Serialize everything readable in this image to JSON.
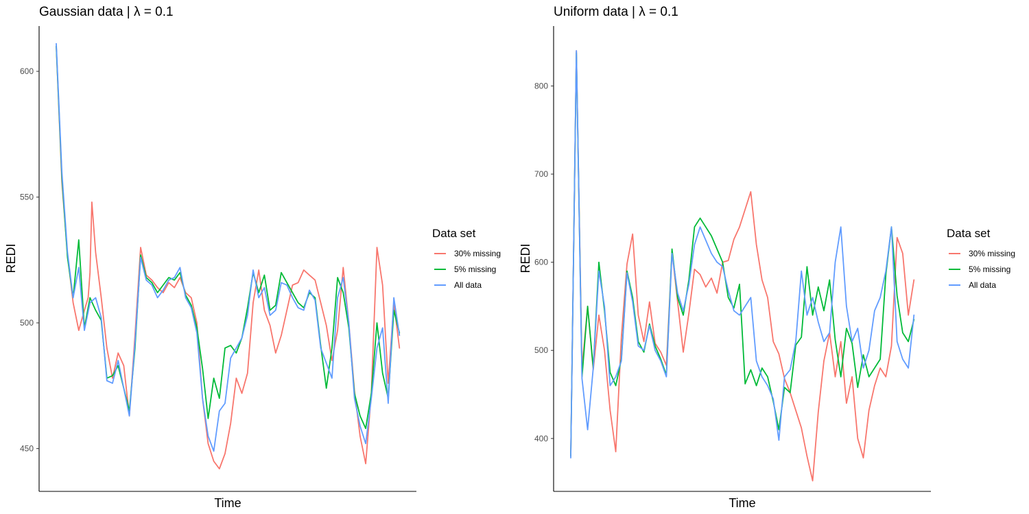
{
  "chart_data": [
    {
      "type": "line",
      "title": "Gaussian data | λ = 0.1",
      "xlabel": "Time",
      "ylabel": "REDI",
      "ylim": [
        433,
        618
      ],
      "yticks": [
        450,
        500,
        550,
        600
      ],
      "xlim": [
        0,
        184
      ],
      "grid": false,
      "legend": {
        "title": "Data set",
        "placement": "right",
        "entries": [
          "30% missing",
          "5% missing",
          "All data"
        ]
      },
      "series": [
        {
          "name": "30% missing",
          "color": "#F8766D",
          "x": [
            0,
            3,
            6,
            9,
            12,
            15,
            17,
            18,
            19,
            21,
            24,
            27,
            30,
            33,
            36,
            39,
            42,
            45,
            48,
            51,
            54,
            57,
            60,
            63,
            66,
            69,
            72,
            75,
            78,
            81,
            84,
            87,
            90,
            93,
            96,
            99,
            102,
            105,
            108,
            111,
            114,
            117,
            120,
            123,
            126,
            129,
            132,
            135,
            138,
            141,
            144,
            147,
            150,
            153,
            156,
            159,
            162,
            165,
            168,
            171,
            174,
            177,
            180,
            183
          ],
          "values": [
            610,
            556,
            527,
            508,
            497,
            505,
            510,
            520,
            548,
            528,
            510,
            490,
            478,
            488,
            483,
            463,
            495,
            530,
            519,
            517,
            514,
            512,
            516,
            514,
            518,
            512,
            510,
            500,
            470,
            452,
            445,
            442,
            448,
            460,
            478,
            472,
            480,
            508,
            521,
            505,
            499,
            488,
            495,
            505,
            515,
            516,
            521,
            519,
            517,
            508,
            499,
            485,
            497,
            522,
            500,
            473,
            455,
            444,
            472,
            530,
            515,
            476,
            508,
            490
          ]
        },
        {
          "name": "5% missing",
          "color": "#00BA38",
          "x": [
            0,
            3,
            6,
            9,
            12,
            15,
            18,
            21,
            24,
            27,
            30,
            33,
            36,
            39,
            42,
            45,
            48,
            51,
            54,
            57,
            60,
            63,
            66,
            69,
            72,
            75,
            78,
            81,
            84,
            87,
            90,
            93,
            96,
            99,
            102,
            105,
            108,
            111,
            114,
            117,
            120,
            123,
            126,
            129,
            132,
            135,
            138,
            141,
            144,
            147,
            150,
            153,
            156,
            159,
            162,
            165,
            168,
            171,
            174,
            177,
            180,
            183
          ],
          "values": [
            610,
            558,
            526,
            510,
            533,
            498,
            510,
            505,
            501,
            478,
            479,
            483,
            474,
            465,
            490,
            527,
            518,
            516,
            512,
            515,
            518,
            517,
            520,
            511,
            507,
            498,
            482,
            462,
            478,
            470,
            490,
            491,
            488,
            494,
            506,
            520,
            512,
            519,
            505,
            507,
            520,
            516,
            512,
            508,
            506,
            512,
            510,
            491,
            474,
            490,
            518,
            512,
            498,
            472,
            463,
            458,
            472,
            500,
            480,
            470,
            505,
            496
          ]
        },
        {
          "name": "All data",
          "color": "#619CFF",
          "x": [
            0,
            3,
            6,
            9,
            12,
            15,
            18,
            21,
            24,
            27,
            30,
            33,
            36,
            39,
            42,
            45,
            48,
            51,
            54,
            57,
            60,
            63,
            66,
            69,
            72,
            75,
            78,
            81,
            84,
            87,
            90,
            93,
            96,
            99,
            102,
            105,
            108,
            111,
            114,
            117,
            120,
            123,
            126,
            129,
            132,
            135,
            138,
            141,
            144,
            147,
            150,
            153,
            156,
            159,
            162,
            165,
            168,
            171,
            174,
            177,
            180,
            183
          ],
          "values": [
            611,
            560,
            528,
            510,
            522,
            497,
            508,
            510,
            502,
            477,
            476,
            485,
            474,
            463,
            492,
            526,
            517,
            515,
            510,
            513,
            517,
            518,
            522,
            510,
            506,
            496,
            470,
            455,
            449,
            465,
            468,
            486,
            490,
            494,
            503,
            521,
            510,
            514,
            503,
            505,
            516,
            515,
            510,
            506,
            505,
            513,
            509,
            490,
            484,
            478,
            510,
            518,
            500,
            470,
            459,
            452,
            470,
            490,
            498,
            468,
            510,
            495
          ]
        }
      ]
    },
    {
      "type": "line",
      "title": "Uniform data | λ = 0.1",
      "xlabel": "Time",
      "ylabel": "REDI",
      "ylim": [
        340,
        868
      ],
      "yticks": [
        400,
        500,
        600,
        700,
        800
      ],
      "xlim": [
        0,
        184
      ],
      "grid": false,
      "legend": {
        "title": "Data set",
        "placement": "right",
        "entries": [
          "30% missing",
          "5% missing",
          "All data"
        ]
      },
      "series": [
        {
          "name": "30% missing",
          "color": "#F8766D",
          "x": [
            0,
            3,
            6,
            9,
            12,
            15,
            18,
            21,
            24,
            27,
            30,
            33,
            36,
            39,
            42,
            45,
            48,
            51,
            54,
            57,
            60,
            63,
            66,
            69,
            72,
            75,
            78,
            81,
            84,
            87,
            90,
            93,
            96,
            99,
            102,
            105,
            108,
            111,
            114,
            117,
            120,
            123,
            126,
            129,
            132,
            135,
            138,
            141,
            144,
            147,
            150,
            153,
            156,
            159,
            162,
            165,
            168,
            171,
            174,
            177,
            180,
            183
          ],
          "values": [
            380,
            840,
            480,
            550,
            478,
            540,
            500,
            432,
            385,
            515,
            598,
            632,
            540,
            510,
            555,
            508,
            498,
            483,
            612,
            555,
            498,
            542,
            592,
            586,
            572,
            582,
            565,
            600,
            602,
            626,
            640,
            660,
            680,
            620,
            580,
            560,
            510,
            496,
            468,
            452,
            432,
            412,
            380,
            352,
            430,
            488,
            520,
            470,
            510,
            440,
            470,
            400,
            378,
            432,
            460,
            480,
            470,
            505,
            628,
            610,
            540,
            580
          ]
        },
        {
          "name": "5% missing",
          "color": "#00BA38",
          "x": [
            0,
            3,
            6,
            9,
            12,
            15,
            18,
            21,
            24,
            27,
            30,
            33,
            36,
            39,
            42,
            45,
            48,
            51,
            54,
            57,
            60,
            63,
            66,
            69,
            72,
            75,
            78,
            81,
            84,
            87,
            90,
            93,
            96,
            99,
            102,
            105,
            108,
            111,
            114,
            117,
            120,
            123,
            126,
            129,
            132,
            135,
            138,
            141,
            144,
            147,
            150,
            153,
            156,
            159,
            162,
            165,
            168,
            171,
            174,
            177,
            180,
            183
          ],
          "values": [
            380,
            838,
            470,
            550,
            480,
            600,
            545,
            475,
            460,
            490,
            590,
            560,
            510,
            498,
            530,
            505,
            490,
            472,
            615,
            560,
            540,
            580,
            640,
            650,
            640,
            630,
            615,
            600,
            560,
            548,
            575,
            462,
            478,
            460,
            480,
            470,
            442,
            410,
            458,
            452,
            506,
            515,
            595,
            540,
            572,
            545,
            580,
            512,
            470,
            525,
            508,
            458,
            495,
            470,
            480,
            490,
            586,
            640,
            562,
            520,
            510,
            535
          ]
        },
        {
          "name": "All data",
          "color": "#619CFF",
          "x": [
            0,
            3,
            6,
            9,
            12,
            15,
            18,
            21,
            24,
            27,
            30,
            33,
            36,
            39,
            42,
            45,
            48,
            51,
            54,
            57,
            60,
            63,
            66,
            69,
            72,
            75,
            78,
            81,
            84,
            87,
            90,
            93,
            96,
            99,
            102,
            105,
            108,
            111,
            114,
            117,
            120,
            123,
            126,
            129,
            132,
            135,
            138,
            141,
            144,
            147,
            150,
            153,
            156,
            159,
            162,
            165,
            168,
            171,
            174,
            177,
            180,
            183
          ],
          "values": [
            378,
            840,
            468,
            410,
            480,
            590,
            550,
            460,
            470,
            488,
            588,
            555,
            505,
            500,
            528,
            500,
            488,
            470,
            610,
            565,
            545,
            575,
            620,
            640,
            625,
            610,
            600,
            595,
            568,
            545,
            540,
            550,
            560,
            488,
            470,
            460,
            445,
            398,
            470,
            478,
            510,
            590,
            540,
            560,
            532,
            510,
            520,
            600,
            640,
            550,
            510,
            525,
            480,
            500,
            545,
            560,
            590,
            640,
            510,
            490,
            480,
            540
          ]
        }
      ]
    }
  ]
}
